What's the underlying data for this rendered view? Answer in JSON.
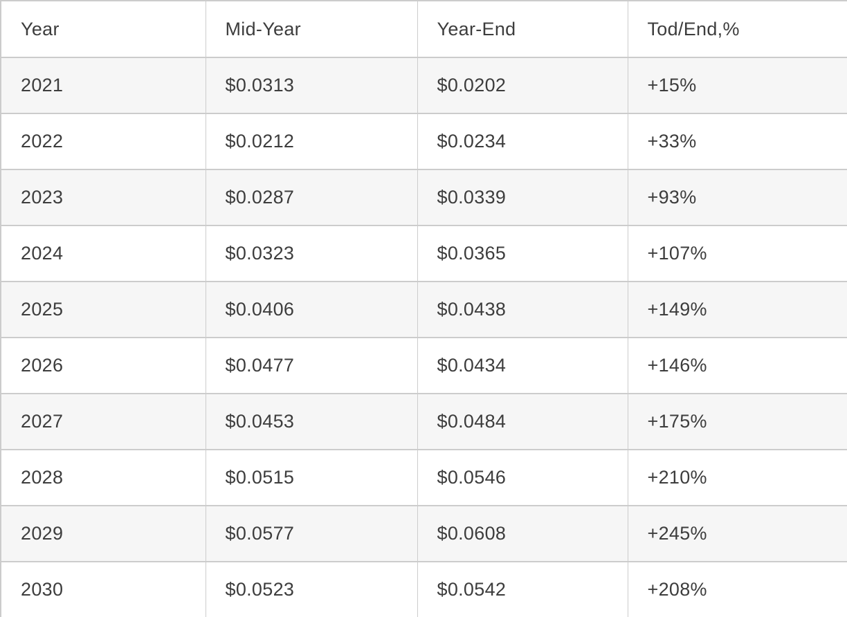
{
  "chart_data": {
    "type": "table",
    "columns": [
      "Year",
      "Mid-Year",
      "Year-End",
      "Tod/End,%"
    ],
    "rows": [
      [
        "2021",
        "$0.0313",
        "$0.0202",
        "+15%"
      ],
      [
        "2022",
        "$0.0212",
        "$0.0234",
        "+33%"
      ],
      [
        "2023",
        "$0.0287",
        "$0.0339",
        "+93%"
      ],
      [
        "2024",
        "$0.0323",
        "$0.0365",
        "+107%"
      ],
      [
        "2025",
        "$0.0406",
        "$0.0438",
        "+149%"
      ],
      [
        "2026",
        "$0.0477",
        "$0.0434",
        "+146%"
      ],
      [
        "2027",
        "$0.0453",
        "$0.0484",
        "+175%"
      ],
      [
        "2028",
        "$0.0515",
        "$0.0546",
        "+210%"
      ],
      [
        "2029",
        "$0.0577",
        "$0.0608",
        "+245%"
      ],
      [
        "2030",
        "$0.0523",
        "$0.0542",
        "+208%"
      ]
    ]
  },
  "colors": {
    "background": "#ffffff",
    "row_stripe": "#f6f6f6",
    "border": "#cccccc",
    "text": "#3d3d3d"
  }
}
